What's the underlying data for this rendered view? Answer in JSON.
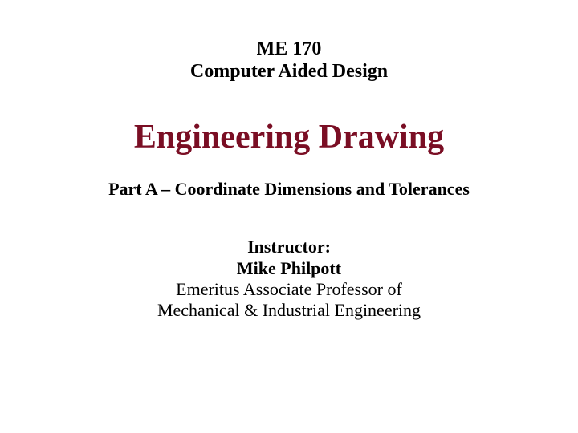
{
  "slide": {
    "course_code": "ME 170",
    "course_name": "Computer Aided Design",
    "main_title": "Engineering Drawing",
    "subtitle": "Part A – Coordinate Dimensions and Tolerances",
    "instructor_label": "Instructor:",
    "instructor_name": "Mike Philpott",
    "instructor_title_line1": "Emeritus Associate Professor of",
    "instructor_title_line2": "Mechanical & Industrial Engineering",
    "colors": {
      "background": "#ffffff",
      "text_primary": "#000000",
      "text_accent": "#7a0e24"
    },
    "typography": {
      "font_family": "Times New Roman, serif",
      "course_fontsize": 24,
      "main_title_fontsize": 42,
      "subtitle_fontsize": 22,
      "instructor_fontsize": 22
    }
  }
}
